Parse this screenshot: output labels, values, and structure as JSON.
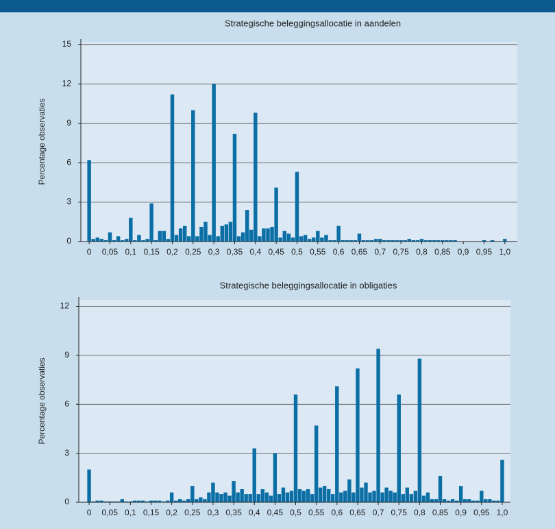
{
  "chart_data": [
    {
      "type": "bar",
      "title": "Strategische beleggingsallocatie in aandelen",
      "y_label": "Percentage observaties",
      "color": "#0b6fa6",
      "grid": true,
      "x": [
        0,
        0.01,
        0.02,
        0.03,
        0.04,
        0.05,
        0.06,
        0.07,
        0.08,
        0.09,
        0.1,
        0.11,
        0.12,
        0.13,
        0.14,
        0.15,
        0.16,
        0.17,
        0.18,
        0.19,
        0.2,
        0.21,
        0.22,
        0.23,
        0.24,
        0.25,
        0.26,
        0.27,
        0.28,
        0.29,
        0.3,
        0.31,
        0.32,
        0.33,
        0.34,
        0.35,
        0.36,
        0.37,
        0.38,
        0.39,
        0.4,
        0.41,
        0.42,
        0.43,
        0.44,
        0.45,
        0.46,
        0.47,
        0.48,
        0.49,
        0.5,
        0.51,
        0.52,
        0.53,
        0.54,
        0.55,
        0.56,
        0.57,
        0.58,
        0.59,
        0.6,
        0.61,
        0.62,
        0.63,
        0.64,
        0.65,
        0.66,
        0.67,
        0.68,
        0.69,
        0.7,
        0.71,
        0.72,
        0.73,
        0.74,
        0.75,
        0.76,
        0.77,
        0.78,
        0.79,
        0.8,
        0.81,
        0.82,
        0.83,
        0.84,
        0.85,
        0.86,
        0.87,
        0.88,
        0.89,
        0.9,
        0.91,
        0.92,
        0.93,
        0.94,
        0.95,
        0.96,
        0.97,
        0.98,
        0.99,
        1
      ],
      "values": [
        6.2,
        0.2,
        0.3,
        0.2,
        0.1,
        0.7,
        0.1,
        0.4,
        0.1,
        0.2,
        1.8,
        0.1,
        0.5,
        0.1,
        0.2,
        2.9,
        0.1,
        0.8,
        0.8,
        0.2,
        11.2,
        0.5,
        1.0,
        1.2,
        0.4,
        10.0,
        0.4,
        1.1,
        1.5,
        0.5,
        12.0,
        0.4,
        1.2,
        1.3,
        1.5,
        8.2,
        0.4,
        0.7,
        2.4,
        0.9,
        9.8,
        0.4,
        1.0,
        1.0,
        1.1,
        4.1,
        0.3,
        0.8,
        0.6,
        0.3,
        5.3,
        0.4,
        0.5,
        0.2,
        0.3,
        0.8,
        0.3,
        0.5,
        0.1,
        0.1,
        1.2,
        0.1,
        0.1,
        0.1,
        0.1,
        0.6,
        0.1,
        0.1,
        0.1,
        0.2,
        0.2,
        0.1,
        0.1,
        0.1,
        0.1,
        0.1,
        0.1,
        0.2,
        0.1,
        0.1,
        0.2,
        0.1,
        0.1,
        0.1,
        0.1,
        0.1,
        0.1,
        0.1,
        0.1,
        0,
        0,
        0,
        0,
        0,
        0,
        0.1,
        0,
        0.1,
        0,
        0,
        0.2
      ],
      "xlim": [
        -0.02,
        1.03
      ],
      "ylim": [
        0,
        15.2
      ],
      "xticks": [
        0,
        {
          "value": 0.05,
          "label": "0,05"
        },
        {
          "value": 0.1,
          "label": "0,1"
        },
        {
          "value": 0.15,
          "label": "0,15"
        },
        {
          "value": 0.2,
          "label": "0,2"
        },
        {
          "value": 0.25,
          "label": "0,25"
        },
        {
          "value": 0.3,
          "label": "0,3"
        },
        {
          "value": 0.35,
          "label": "0,35"
        },
        {
          "value": 0.4,
          "label": "0,4"
        },
        {
          "value": 0.45,
          "label": "0,45"
        },
        {
          "value": 0.5,
          "label": "0,5"
        },
        {
          "value": 0.55,
          "label": "0,55"
        },
        {
          "value": 0.6,
          "label": "0,6"
        },
        {
          "value": 0.65,
          "label": "0,65"
        },
        {
          "value": 0.7,
          "label": "0,7"
        },
        {
          "value": 0.75,
          "label": "0,75"
        },
        {
          "value": 0.8,
          "label": "0,8"
        },
        {
          "value": 0.85,
          "label": "0,85"
        },
        {
          "value": 0.9,
          "label": "0,9"
        },
        {
          "value": 0.95,
          "label": "0,95"
        },
        {
          "value": 1,
          "label": "1,0"
        }
      ],
      "yticks": [
        0,
        3,
        6,
        9,
        12,
        15
      ]
    },
    {
      "type": "bar",
      "title": "Strategische beleggingsallocatie in obligaties",
      "y_label": "Percentage observaties",
      "color": "#0b6fa6",
      "grid": true,
      "x": [
        0,
        0.01,
        0.02,
        0.03,
        0.04,
        0.05,
        0.06,
        0.07,
        0.08,
        0.09,
        0.1,
        0.11,
        0.12,
        0.13,
        0.14,
        0.15,
        0.16,
        0.17,
        0.18,
        0.19,
        0.2,
        0.21,
        0.22,
        0.23,
        0.24,
        0.25,
        0.26,
        0.27,
        0.28,
        0.29,
        0.3,
        0.31,
        0.32,
        0.33,
        0.34,
        0.35,
        0.36,
        0.37,
        0.38,
        0.39,
        0.4,
        0.41,
        0.42,
        0.43,
        0.44,
        0.45,
        0.46,
        0.47,
        0.48,
        0.49,
        0.5,
        0.51,
        0.52,
        0.53,
        0.54,
        0.55,
        0.56,
        0.57,
        0.58,
        0.59,
        0.6,
        0.61,
        0.62,
        0.63,
        0.64,
        0.65,
        0.66,
        0.67,
        0.68,
        0.69,
        0.7,
        0.71,
        0.72,
        0.73,
        0.74,
        0.75,
        0.76,
        0.77,
        0.78,
        0.79,
        0.8,
        0.81,
        0.82,
        0.83,
        0.84,
        0.85,
        0.86,
        0.87,
        0.88,
        0.89,
        0.9,
        0.91,
        0.92,
        0.93,
        0.94,
        0.95,
        0.96,
        0.97,
        0.98,
        0.99,
        1
      ],
      "values": [
        2.0,
        0.05,
        0.1,
        0.1,
        0.05,
        0.05,
        0.05,
        0.05,
        0.2,
        0.05,
        0.05,
        0.1,
        0.1,
        0.1,
        0.05,
        0.1,
        0.1,
        0.1,
        0.05,
        0.1,
        0.6,
        0.1,
        0.2,
        0.1,
        0.2,
        1.0,
        0.2,
        0.3,
        0.2,
        0.6,
        1.2,
        0.6,
        0.5,
        0.6,
        0.4,
        1.3,
        0.6,
        0.8,
        0.5,
        0.5,
        3.3,
        0.5,
        0.8,
        0.6,
        0.4,
        3.0,
        0.5,
        0.9,
        0.6,
        0.7,
        6.6,
        0.8,
        0.7,
        0.8,
        0.5,
        4.7,
        0.9,
        1.0,
        0.8,
        0.5,
        7.1,
        0.6,
        0.7,
        1.4,
        0.6,
        8.2,
        0.9,
        1.2,
        0.6,
        0.7,
        9.4,
        0.6,
        0.9,
        0.7,
        0.6,
        6.6,
        0.5,
        0.9,
        0.5,
        0.7,
        8.8,
        0.4,
        0.6,
        0.2,
        0.2,
        1.6,
        0.2,
        0.1,
        0.2,
        0.1,
        1.0,
        0.2,
        0.2,
        0.1,
        0.1,
        0.7,
        0.2,
        0.2,
        0.1,
        0.1,
        2.6
      ],
      "xlim": [
        -0.025,
        1.02
      ],
      "ylim": [
        0,
        12.4
      ],
      "xticks": [
        0,
        {
          "value": 0.05,
          "label": "0,05"
        },
        {
          "value": 0.1,
          "label": "0,1"
        },
        {
          "value": 0.15,
          "label": "0,15"
        },
        {
          "value": 0.2,
          "label": "0,2"
        },
        {
          "value": 0.25,
          "label": "0,25"
        },
        {
          "value": 0.3,
          "label": "0,3"
        },
        {
          "value": 0.35,
          "label": "0,35"
        },
        {
          "value": 0.4,
          "label": "0,4"
        },
        {
          "value": 0.45,
          "label": "0,45"
        },
        {
          "value": 0.5,
          "label": "0,5"
        },
        {
          "value": 0.55,
          "label": "0,55"
        },
        {
          "value": 0.6,
          "label": "0,6"
        },
        {
          "value": 0.65,
          "label": "0,65"
        },
        {
          "value": 0.7,
          "label": "0,7"
        },
        {
          "value": 0.75,
          "label": "0,75"
        },
        {
          "value": 0.8,
          "label": "0,8"
        },
        {
          "value": 0.85,
          "label": "0,85"
        },
        {
          "value": 0.9,
          "label": "0,9"
        },
        {
          "value": 0.95,
          "label": "0,95"
        },
        {
          "value": 1,
          "label": "1,0"
        }
      ],
      "yticks": [
        0,
        3,
        6,
        9,
        12
      ]
    }
  ]
}
